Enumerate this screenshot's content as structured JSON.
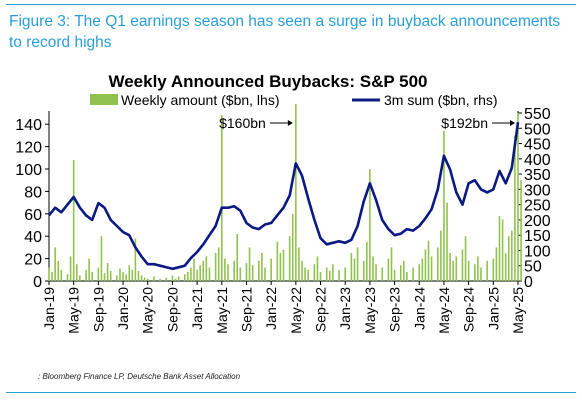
{
  "figure_title": "Figure 3: The Q1 earnings season has seen a surge in buyback announcements to record highs",
  "source": ": Bloomberg Finance LP, Deutsche Bank Asset Allocation",
  "colors": {
    "accent": "#2a9fd6",
    "bars": "#92c24e",
    "line": "#0a1a82"
  },
  "chart_data": {
    "type": "bar+line",
    "title": "Weekly Announced Buybacks: S&P 500",
    "x_tick_labels": [
      "Jan-19",
      "May-19",
      "Sep-19",
      "Jan-20",
      "May-20",
      "Sep-20",
      "Jan-21",
      "May-21",
      "Sep-21",
      "Jan-22",
      "May-22",
      "Sep-22",
      "Jan-23",
      "May-23",
      "Sep-23",
      "Jan-24",
      "May-24",
      "Sep-24",
      "Jan-25",
      "May-25"
    ],
    "y_left": {
      "label": "Weekly amount ($bn, lhs)",
      "ticks": [
        0,
        20,
        40,
        60,
        80,
        100,
        120,
        140
      ],
      "range": [
        0,
        150
      ]
    },
    "y_right": {
      "label": "3m sum ($bn, rhs)",
      "ticks": [
        0,
        50,
        100,
        150,
        200,
        250,
        300,
        350,
        400,
        450,
        500,
        550
      ],
      "range": [
        0,
        550
      ]
    },
    "annotations": [
      {
        "text": "$160bn",
        "date": "2022-05"
      },
      {
        "text": "$192bn",
        "date": "2025-05"
      }
    ],
    "series": [
      {
        "name": "Weekly amount ($bn, lhs)",
        "kind": "bar",
        "axis": "left",
        "points": [
          [
            "2019-01",
            12
          ],
          [
            "2019-01",
            8
          ],
          [
            "2019-02",
            30
          ],
          [
            "2019-02",
            18
          ],
          [
            "2019-03",
            10
          ],
          [
            "2019-04",
            6
          ],
          [
            "2019-04",
            22
          ],
          [
            "2019-05",
            108
          ],
          [
            "2019-05",
            15
          ],
          [
            "2019-06",
            5
          ],
          [
            "2019-07",
            10
          ],
          [
            "2019-07",
            20
          ],
          [
            "2019-08",
            8
          ],
          [
            "2019-09",
            12
          ],
          [
            "2019-09",
            40
          ],
          [
            "2019-10",
            7
          ],
          [
            "2019-10",
            16
          ],
          [
            "2019-11",
            9
          ],
          [
            "2019-12",
            5
          ],
          [
            "2019-12",
            11
          ],
          [
            "2020-01",
            8
          ],
          [
            "2020-01",
            6
          ],
          [
            "2020-02",
            14
          ],
          [
            "2020-02",
            10
          ],
          [
            "2020-03",
            38
          ],
          [
            "2020-03",
            9
          ],
          [
            "2020-04",
            5
          ],
          [
            "2020-04",
            3
          ],
          [
            "2020-05",
            2
          ],
          [
            "2020-06",
            4
          ],
          [
            "2020-07",
            2
          ],
          [
            "2020-08",
            3
          ],
          [
            "2020-09",
            5
          ],
          [
            "2020-09",
            2
          ],
          [
            "2020-10",
            4
          ],
          [
            "2020-11",
            6
          ],
          [
            "2020-11",
            8
          ],
          [
            "2020-12",
            12
          ],
          [
            "2020-12",
            20
          ],
          [
            "2021-01",
            10
          ],
          [
            "2021-01",
            14
          ],
          [
            "2021-02",
            18
          ],
          [
            "2021-02",
            22
          ],
          [
            "2021-03",
            12
          ],
          [
            "2021-04",
            25
          ],
          [
            "2021-04",
            30
          ],
          [
            "2021-05",
            148
          ],
          [
            "2021-05",
            20
          ],
          [
            "2021-06",
            15
          ],
          [
            "2021-07",
            18
          ],
          [
            "2021-07",
            42
          ],
          [
            "2021-08",
            12
          ],
          [
            "2021-09",
            16
          ],
          [
            "2021-09",
            30
          ],
          [
            "2021-10",
            14
          ],
          [
            "2021-11",
            18
          ],
          [
            "2021-11",
            25
          ],
          [
            "2021-12",
            12
          ],
          [
            "2022-01",
            20
          ],
          [
            "2022-02",
            35
          ],
          [
            "2022-02",
            25
          ],
          [
            "2022-03",
            28
          ],
          [
            "2022-04",
            40
          ],
          [
            "2022-04",
            60
          ],
          [
            "2022-05",
            158
          ],
          [
            "2022-05",
            30
          ],
          [
            "2022-06",
            18
          ],
          [
            "2022-06",
            12
          ],
          [
            "2022-07",
            10
          ],
          [
            "2022-08",
            15
          ],
          [
            "2022-08",
            22
          ],
          [
            "2022-09",
            8
          ],
          [
            "2022-10",
            12
          ],
          [
            "2022-10",
            9
          ],
          [
            "2022-11",
            15
          ],
          [
            "2022-12",
            10
          ],
          [
            "2023-01",
            12
          ],
          [
            "2023-02",
            25
          ],
          [
            "2023-02",
            20
          ],
          [
            "2023-03",
            30
          ],
          [
            "2023-04",
            18
          ],
          [
            "2023-04",
            35
          ],
          [
            "2023-05",
            100
          ],
          [
            "2023-05",
            22
          ],
          [
            "2023-06",
            15
          ],
          [
            "2023-07",
            12
          ],
          [
            "2023-08",
            20
          ],
          [
            "2023-08",
            30
          ],
          [
            "2023-09",
            10
          ],
          [
            "2023-10",
            14
          ],
          [
            "2023-10",
            18
          ],
          [
            "2023-11",
            8
          ],
          [
            "2023-12",
            12
          ],
          [
            "2024-01",
            15
          ],
          [
            "2024-01",
            20
          ],
          [
            "2024-02",
            28
          ],
          [
            "2024-02",
            36
          ],
          [
            "2024-03",
            22
          ],
          [
            "2024-04",
            30
          ],
          [
            "2024-04",
            45
          ],
          [
            "2024-05",
            134
          ],
          [
            "2024-05",
            70
          ],
          [
            "2024-06",
            25
          ],
          [
            "2024-06",
            18
          ],
          [
            "2024-07",
            22
          ],
          [
            "2024-08",
            28
          ],
          [
            "2024-08",
            40
          ],
          [
            "2024-09",
            18
          ],
          [
            "2024-10",
            15
          ],
          [
            "2024-10",
            22
          ],
          [
            "2024-11",
            12
          ],
          [
            "2024-12",
            18
          ],
          [
            "2025-01",
            20
          ],
          [
            "2025-01",
            30
          ],
          [
            "2025-02",
            58
          ],
          [
            "2025-02",
            55
          ],
          [
            "2025-03",
            25
          ],
          [
            "2025-03",
            40
          ],
          [
            "2025-04",
            45
          ],
          [
            "2025-04",
            130
          ],
          [
            "2025-05",
            150
          ],
          [
            "2025-05",
            90
          ]
        ]
      },
      {
        "name": "3m sum ($bn, rhs)",
        "kind": "line",
        "axis": "right",
        "points": [
          [
            "2019-01",
            215
          ],
          [
            "2019-02",
            240
          ],
          [
            "2019-03",
            225
          ],
          [
            "2019-04",
            250
          ],
          [
            "2019-05",
            275
          ],
          [
            "2019-06",
            240
          ],
          [
            "2019-07",
            215
          ],
          [
            "2019-08",
            200
          ],
          [
            "2019-09",
            255
          ],
          [
            "2019-10",
            240
          ],
          [
            "2019-11",
            200
          ],
          [
            "2019-12",
            180
          ],
          [
            "2020-01",
            160
          ],
          [
            "2020-02",
            150
          ],
          [
            "2020-03",
            110
          ],
          [
            "2020-04",
            80
          ],
          [
            "2020-05",
            55
          ],
          [
            "2020-06",
            55
          ],
          [
            "2020-07",
            50
          ],
          [
            "2020-08",
            45
          ],
          [
            "2020-09",
            40
          ],
          [
            "2020-10",
            45
          ],
          [
            "2020-11",
            50
          ],
          [
            "2020-12",
            75
          ],
          [
            "2021-01",
            95
          ],
          [
            "2021-02",
            120
          ],
          [
            "2021-03",
            150
          ],
          [
            "2021-04",
            180
          ],
          [
            "2021-05",
            240
          ],
          [
            "2021-06",
            240
          ],
          [
            "2021-07",
            245
          ],
          [
            "2021-08",
            230
          ],
          [
            "2021-09",
            190
          ],
          [
            "2021-10",
            175
          ],
          [
            "2021-11",
            170
          ],
          [
            "2021-12",
            185
          ],
          [
            "2022-01",
            190
          ],
          [
            "2022-02",
            215
          ],
          [
            "2022-03",
            240
          ],
          [
            "2022-04",
            280
          ],
          [
            "2022-05",
            385
          ],
          [
            "2022-06",
            345
          ],
          [
            "2022-07",
            270
          ],
          [
            "2022-08",
            200
          ],
          [
            "2022-09",
            140
          ],
          [
            "2022-10",
            120
          ],
          [
            "2022-11",
            125
          ],
          [
            "2022-12",
            130
          ],
          [
            "2023-01",
            125
          ],
          [
            "2023-02",
            135
          ],
          [
            "2023-03",
            180
          ],
          [
            "2023-04",
            260
          ],
          [
            "2023-05",
            320
          ],
          [
            "2023-06",
            265
          ],
          [
            "2023-07",
            200
          ],
          [
            "2023-08",
            170
          ],
          [
            "2023-09",
            150
          ],
          [
            "2023-10",
            155
          ],
          [
            "2023-11",
            170
          ],
          [
            "2023-12",
            165
          ],
          [
            "2024-01",
            180
          ],
          [
            "2024-02",
            205
          ],
          [
            "2024-03",
            235
          ],
          [
            "2024-04",
            300
          ],
          [
            "2024-05",
            410
          ],
          [
            "2024-06",
            365
          ],
          [
            "2024-07",
            290
          ],
          [
            "2024-08",
            250
          ],
          [
            "2024-09",
            320
          ],
          [
            "2024-10",
            330
          ],
          [
            "2024-11",
            300
          ],
          [
            "2024-12",
            290
          ],
          [
            "2025-01",
            300
          ],
          [
            "2025-02",
            360
          ],
          [
            "2025-03",
            320
          ],
          [
            "2025-04",
            370
          ],
          [
            "2025-05",
            520
          ]
        ]
      }
    ]
  }
}
